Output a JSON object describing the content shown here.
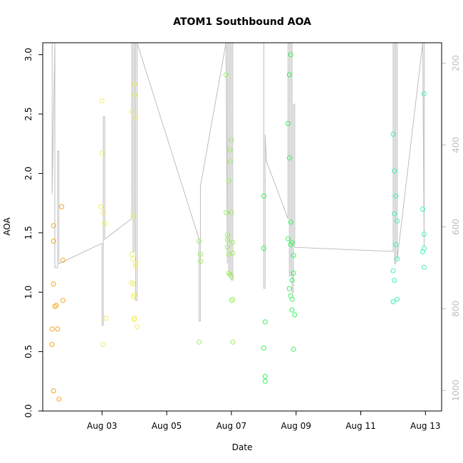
{
  "chart_data": {
    "type": "scatter",
    "title": "ATOM1 Southbound AOA",
    "xlabel": "Date",
    "ylabel": "AOA",
    "xlim": [
      "2023-08-01T04:00",
      "2023-08-13T12:00"
    ],
    "ylim": [
      0,
      3.1
    ],
    "x_ticks": [
      {
        "date": "2023-08-03",
        "label": "Aug 03"
      },
      {
        "date": "2023-08-05",
        "label": "Aug 05"
      },
      {
        "date": "2023-08-07",
        "label": "Aug 07"
      },
      {
        "date": "2023-08-09",
        "label": "Aug 09"
      },
      {
        "date": "2023-08-11",
        "label": "Aug 11"
      },
      {
        "date": "2023-08-13",
        "label": "Aug 13"
      }
    ],
    "y_ticks": [
      0.0,
      0.5,
      1.0,
      1.5,
      2.0,
      2.5,
      3.0
    ],
    "y_tick_labels": [
      "0.0",
      "0.5",
      "1.0",
      "1.5",
      "2.0",
      "2.5",
      "3.0"
    ],
    "y2_range": [
      1050,
      150
    ],
    "y2_ticks": [
      200,
      400,
      600,
      800,
      1000
    ],
    "y2_tick_labels": [
      "200",
      "400",
      "600",
      "800",
      "1000"
    ],
    "grid": false,
    "colors": {
      "line": "#bebebe",
      "axis": "#000000",
      "points": [
        "#f5a623",
        "#f0f060",
        "#9ef060",
        "#3cf060",
        "#3ff0b8"
      ]
    },
    "point_groups": [
      {
        "color": "#f5a623",
        "points": [
          [
            "2023-08-01T18:00",
            1.72
          ],
          [
            "2023-08-01T12:00",
            1.56
          ],
          [
            "2023-08-01T12:00",
            1.43
          ],
          [
            "2023-08-01T19:00",
            1.27
          ],
          [
            "2023-08-01T12:00",
            1.07
          ],
          [
            "2023-08-01T19:00",
            0.93
          ],
          [
            "2023-08-01T14:00",
            0.89
          ],
          [
            "2023-08-01T13:00",
            0.88
          ],
          [
            "2023-08-01T11:00",
            0.69
          ],
          [
            "2023-08-01T15:00",
            0.69
          ],
          [
            "2023-08-01T11:00",
            0.56
          ],
          [
            "2023-08-01T12:00",
            0.17
          ],
          [
            "2023-08-01T16:00",
            0.1
          ]
        ]
      },
      {
        "color": "#f0f060",
        "points": [
          [
            "2023-08-03T00:00",
            2.61
          ],
          [
            "2023-08-03T00:00",
            2.17
          ],
          [
            "2023-08-02T23:00",
            1.72
          ],
          [
            "2023-08-03T01:00",
            1.67
          ],
          [
            "2023-08-03T02:00",
            1.58
          ],
          [
            "2023-08-03T03:00",
            0.78
          ],
          [
            "2023-08-03T01:00",
            0.56
          ],
          [
            "2023-08-04T00:00",
            2.75
          ],
          [
            "2023-08-03T22:00",
            2.52
          ],
          [
            "2023-08-04T01:00",
            2.47
          ],
          [
            "2023-08-04T00:00",
            2.66
          ],
          [
            "2023-08-03T23:00",
            1.64
          ],
          [
            "2023-08-03T22:00",
            1.32
          ],
          [
            "2023-08-03T23:00",
            1.28
          ],
          [
            "2023-08-04T01:00",
            1.24
          ],
          [
            "2023-08-04T01:00",
            1.22
          ],
          [
            "2023-08-03T22:00",
            1.08
          ],
          [
            "2023-08-03T23:00",
            1.07
          ],
          [
            "2023-08-04T00:00",
            0.98
          ],
          [
            "2023-08-03T23:00",
            0.96
          ],
          [
            "2023-08-04T00:00",
            0.78
          ],
          [
            "2023-08-04T00:00",
            0.77
          ],
          [
            "2023-08-04T02:00",
            0.71
          ]
        ]
      },
      {
        "color": "#9ef060",
        "points": [
          [
            "2023-08-06T00:00",
            1.43
          ],
          [
            "2023-08-06T01:00",
            1.32
          ],
          [
            "2023-08-06T01:00",
            1.26
          ],
          [
            "2023-08-06T00:00",
            0.58
          ],
          [
            "2023-08-06T20:00",
            2.83
          ],
          [
            "2023-08-06T20:00",
            1.67
          ],
          [
            "2023-08-06T21:00",
            1.48
          ],
          [
            "2023-08-06T21:00",
            1.44
          ],
          [
            "2023-08-06T21:00",
            1.38
          ],
          [
            "2023-08-06T22:00",
            1.32
          ],
          [
            "2023-08-06T22:00",
            1.16
          ],
          [
            "2023-08-06T23:00",
            1.15
          ],
          [
            "2023-08-07T00:00",
            1.13
          ],
          [
            "2023-08-07T00:00",
            0.93
          ],
          [
            "2023-08-06T23:00",
            2.2
          ],
          [
            "2023-08-07T00:00",
            2.28
          ],
          [
            "2023-08-06T23:00",
            2.1
          ],
          [
            "2023-08-06T22:00",
            1.94
          ],
          [
            "2023-08-07T00:00",
            1.67
          ],
          [
            "2023-08-07T01:00",
            1.42
          ],
          [
            "2023-08-07T01:00",
            1.33
          ],
          [
            "2023-08-07T01:00",
            0.94
          ],
          [
            "2023-08-07T01:00",
            0.58
          ]
        ]
      },
      {
        "color": "#3cf060",
        "points": [
          [
            "2023-08-08T00:00",
            1.81
          ],
          [
            "2023-08-08T00:00",
            1.37
          ],
          [
            "2023-08-08T01:00",
            0.75
          ],
          [
            "2023-08-08T00:00",
            0.53
          ],
          [
            "2023-08-08T01:00",
            0.29
          ],
          [
            "2023-08-08T01:00",
            0.25
          ],
          [
            "2023-08-08T20:00",
            3.0
          ],
          [
            "2023-08-08T19:00",
            2.83
          ],
          [
            "2023-08-08T18:00",
            2.42
          ],
          [
            "2023-08-08T19:00",
            2.13
          ],
          [
            "2023-08-08T20:00",
            1.59
          ],
          [
            "2023-08-08T18:00",
            1.45
          ],
          [
            "2023-08-08T21:00",
            1.42
          ],
          [
            "2023-08-08T20:00",
            1.4
          ],
          [
            "2023-08-08T22:00",
            1.31
          ],
          [
            "2023-08-08T22:00",
            1.16
          ],
          [
            "2023-08-08T21:00",
            1.1
          ],
          [
            "2023-08-08T19:00",
            1.03
          ],
          [
            "2023-08-08T20:00",
            0.97
          ],
          [
            "2023-08-08T21:00",
            0.94
          ],
          [
            "2023-08-08T21:00",
            0.85
          ],
          [
            "2023-08-08T23:00",
            0.81
          ],
          [
            "2023-08-08T22:00",
            0.52
          ]
        ]
      },
      {
        "color": "#3ff0b8",
        "points": [
          [
            "2023-08-12T00:00",
            2.33
          ],
          [
            "2023-08-12T01:00",
            2.02
          ],
          [
            "2023-08-12T02:00",
            1.81
          ],
          [
            "2023-08-12T01:00",
            1.66
          ],
          [
            "2023-08-12T03:00",
            1.6
          ],
          [
            "2023-08-12T02:00",
            1.4
          ],
          [
            "2023-08-12T03:00",
            1.28
          ],
          [
            "2023-08-12T00:00",
            1.18
          ],
          [
            "2023-08-12T01:00",
            1.1
          ],
          [
            "2023-08-12T03:00",
            0.94
          ],
          [
            "2023-08-12T00:00",
            0.92
          ],
          [
            "2023-08-12T23:00",
            2.67
          ],
          [
            "2023-08-12T22:00",
            1.7
          ],
          [
            "2023-08-12T23:00",
            1.49
          ],
          [
            "2023-08-12T23:00",
            1.37
          ],
          [
            "2023-08-12T22:00",
            1.34
          ],
          [
            "2023-08-12T23:00",
            1.21
          ]
        ]
      }
    ],
    "line_series": {
      "axis": "y2",
      "points": [
        [
          "2023-08-01T11:00",
          150
        ],
        [
          "2023-08-01T11:00",
          520
        ],
        [
          "2023-08-01T13:00",
          150
        ],
        [
          "2023-08-01T13:00",
          700
        ],
        [
          "2023-08-01T15:00",
          700
        ],
        [
          "2023-08-01T15:00",
          415
        ],
        [
          "2023-08-01T16:00",
          415
        ],
        [
          "2023-08-01T16:00",
          690
        ],
        [
          "2023-08-03T00:00",
          640
        ],
        [
          "2023-08-03T00:00",
          840
        ],
        [
          "2023-08-03T01:00",
          840
        ],
        [
          "2023-08-03T01:00",
          330
        ],
        [
          "2023-08-03T02:00",
          330
        ],
        [
          "2023-08-03T02:00",
          630
        ],
        [
          "2023-08-03T22:00",
          580
        ],
        [
          "2023-08-03T22:00",
          150
        ],
        [
          "2023-08-03T23:00",
          150
        ],
        [
          "2023-08-03T23:00",
          660
        ],
        [
          "2023-08-04T00:00",
          660
        ],
        [
          "2023-08-04T00:00",
          150
        ],
        [
          "2023-08-04T01:00",
          150
        ],
        [
          "2023-08-04T01:00",
          780
        ],
        [
          "2023-08-04T02:00",
          780
        ],
        [
          "2023-08-04T02:00",
          150
        ],
        [
          "2023-08-06T00:00",
          630
        ],
        [
          "2023-08-06T00:00",
          830
        ],
        [
          "2023-08-06T01:00",
          830
        ],
        [
          "2023-08-06T01:00",
          500
        ],
        [
          "2023-08-06T20:00",
          150
        ],
        [
          "2023-08-06T21:00",
          690
        ],
        [
          "2023-08-06T21:00",
          150
        ],
        [
          "2023-08-06T22:00",
          150
        ],
        [
          "2023-08-06T22:00",
          720
        ],
        [
          "2023-08-06T23:00",
          720
        ],
        [
          "2023-08-06T23:00",
          150
        ],
        [
          "2023-08-07T00:00",
          150
        ],
        [
          "2023-08-07T00:00",
          730
        ],
        [
          "2023-08-07T01:00",
          730
        ],
        [
          "2023-08-07T01:00",
          150
        ],
        [
          "2023-08-08T00:00",
          150
        ],
        [
          "2023-08-08T00:00",
          750
        ],
        [
          "2023-08-08T01:00",
          750
        ],
        [
          "2023-08-08T01:00",
          375
        ],
        [
          "2023-08-08T02:00",
          440
        ],
        [
          "2023-08-08T18:00",
          580
        ],
        [
          "2023-08-08T18:00",
          150
        ],
        [
          "2023-08-08T19:00",
          150
        ],
        [
          "2023-08-08T19:00",
          720
        ],
        [
          "2023-08-08T20:00",
          720
        ],
        [
          "2023-08-08T20:00",
          150
        ],
        [
          "2023-08-08T21:00",
          150
        ],
        [
          "2023-08-08T21:00",
          760
        ],
        [
          "2023-08-08T22:00",
          760
        ],
        [
          "2023-08-08T22:00",
          300
        ],
        [
          "2023-08-08T23:00",
          300
        ],
        [
          "2023-08-08T23:00",
          650
        ],
        [
          "2023-08-12T00:00",
          660
        ],
        [
          "2023-08-12T00:00",
          150
        ],
        [
          "2023-08-12T01:00",
          150
        ],
        [
          "2023-08-12T01:00",
          690
        ],
        [
          "2023-08-12T02:00",
          690
        ],
        [
          "2023-08-12T02:00",
          150
        ],
        [
          "2023-08-12T03:00",
          150
        ],
        [
          "2023-08-12T03:00",
          680
        ],
        [
          "2023-08-12T22:00",
          150
        ],
        [
          "2023-08-12T23:00",
          650
        ],
        [
          "2023-08-12T23:00",
          150
        ]
      ]
    }
  }
}
